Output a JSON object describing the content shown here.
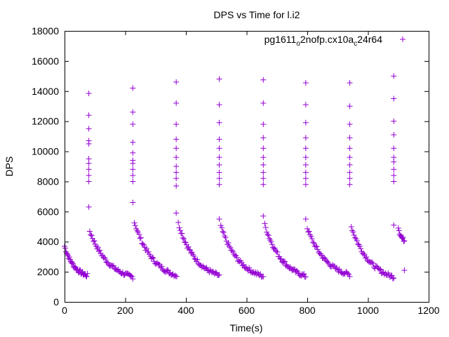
{
  "chart_data": {
    "type": "scatter",
    "title": "DPS vs Time for l.i2",
    "xlabel": "Time(s)",
    "ylabel": "DPS",
    "xlim": [
      0,
      1200
    ],
    "ylim": [
      0,
      18000
    ],
    "xticks": [
      0,
      200,
      400,
      600,
      800,
      1000,
      1200
    ],
    "yticks": [
      0,
      2000,
      4000,
      6000,
      8000,
      10000,
      12000,
      14000,
      16000,
      18000
    ],
    "grid": false,
    "legend_position": "top-right",
    "marker": "plus",
    "color": "#9400d3",
    "series": [
      {
        "name_main": "pg1611",
        "name_sub1": "o",
        "name_mid": "2nofp.cx10a",
        "name_sub2": "c",
        "name_end": "24r64",
        "cycles": [
          {
            "spike_t": 80,
            "spike": [
              13850,
              12400,
              11500,
              10700,
              10500,
              9500,
              9200,
              8800,
              8400,
              8000,
              6300
            ],
            "s_start": 0,
            "s_end": 75,
            "v_start": 3700,
            "v_end": 1750,
            "n": 34
          },
          {
            "spike_t": 225,
            "spike": [
              14200,
              12600,
              11800,
              10600,
              9900,
              9400,
              9200,
              8800,
              8400,
              8000,
              6600
            ],
            "s_start": 83,
            "s_end": 225,
            "v_start": 4700,
            "v_end": 1650,
            "n": 48
          },
          {
            "spike_t": 368,
            "spike": [
              14600,
              13200,
              11800,
              10800,
              10200,
              9600,
              9000,
              8600,
              8200,
              7700,
              5900
            ],
            "s_start": 230,
            "s_end": 370,
            "v_start": 5300,
            "v_end": 1750,
            "n": 46
          },
          {
            "spike_t": 510,
            "spike": [
              14800,
              13100,
              11900,
              10800,
              10200,
              9600,
              9100,
              8600,
              8200,
              7800,
              5500
            ],
            "s_start": 375,
            "s_end": 510,
            "v_start": 5200,
            "v_end": 1750,
            "n": 46
          },
          {
            "spike_t": 655,
            "spike": [
              14750,
              13200,
              11800,
              10900,
              10200,
              9600,
              9100,
              8600,
              8200,
              7800,
              5700
            ],
            "s_start": 515,
            "s_end": 655,
            "v_start": 5000,
            "v_end": 1700,
            "n": 46
          },
          {
            "spike_t": 795,
            "spike": [
              14550,
              13100,
              11900,
              10900,
              10200,
              9600,
              9100,
              8600,
              8200,
              7800,
              5500
            ],
            "s_start": 660,
            "s_end": 795,
            "v_start": 5100,
            "v_end": 1700,
            "n": 46
          },
          {
            "spike_t": 940,
            "spike": [
              14550,
              13000,
              11800,
              10900,
              10200,
              9600,
              9100,
              8600,
              8200,
              7800
            ],
            "s_start": 800,
            "s_end": 940,
            "v_start": 4900,
            "v_end": 1800,
            "n": 46
          },
          {
            "spike_t": 1085,
            "spike": [
              15000,
              13500,
              12000,
              11100,
              10200,
              9600,
              9300,
              8800,
              8400,
              8000,
              5100
            ],
            "s_start": 945,
            "s_end": 1085,
            "v_start": 5000,
            "v_end": 1650,
            "n": 46
          },
          {
            "spike_t": null,
            "spike": [],
            "s_start": 1100,
            "s_end": 1120,
            "v_start": 5000,
            "v_end": 4100,
            "n": 10
          }
        ],
        "extra_points": [
          [
            1120,
            2100
          ]
        ]
      }
    ]
  }
}
